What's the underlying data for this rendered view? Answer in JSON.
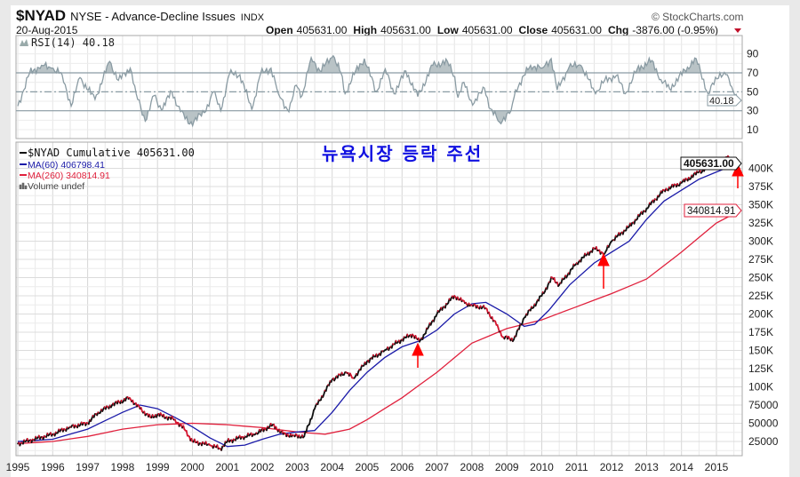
{
  "header": {
    "symbol": "$NYAD",
    "name": "NYSE - Advance-Decline Issues",
    "exchange": "INDX",
    "date": "20-Aug-2015",
    "brand": "© StockCharts.com",
    "open_label": "Open",
    "open": "405631.00",
    "high_label": "High",
    "high": "405631.00",
    "low_label": "Low",
    "low": "405631.00",
    "close_label": "Close",
    "close": "405631.00",
    "chg_label": "Chg",
    "chg": "-3876.00 (-0.95%)"
  },
  "annotation": "뉴욕시장 등락 주선",
  "colors": {
    "price": "#111111",
    "ma60": "#1a1aa8",
    "ma260": "#e0203c",
    "rsi": "#8a9ba3",
    "arrow": "#ff0000",
    "title": "#1010e0"
  },
  "chart_data": [
    {
      "type": "line",
      "title": "RSI(14) 40.18",
      "legend": "RSI(14) 40.18",
      "last_value_tag": "40.18",
      "ylim": [
        0,
        100
      ],
      "yticks": [
        "90",
        "70",
        "50",
        "30",
        "10"
      ],
      "ytick_values": [
        90,
        70,
        50,
        30,
        10
      ],
      "reference_lines": [
        70,
        50,
        30
      ],
      "x": [
        1995.0,
        1995.34,
        1995.68,
        1995.97,
        1996.27,
        1996.53,
        1996.78,
        1997.21,
        1997.63,
        1997.88,
        1998.22,
        1998.39,
        1998.65,
        1998.9,
        1999.11,
        1999.41,
        1999.66,
        1999.92,
        2000.34,
        2000.6,
        2000.81,
        2001.06,
        2001.36,
        2001.7,
        2001.95,
        2002.25,
        2002.46,
        2002.76,
        2002.97,
        2003.14,
        2003.4,
        2003.65,
        2004.03,
        2004.25,
        2004.37,
        2004.67,
        2004.92,
        2005.26,
        2005.52,
        2005.77,
        2006.11,
        2006.45,
        2006.88,
        2007.3,
        2007.51,
        2007.6,
        2007.77,
        2008.02,
        2008.36,
        2008.53,
        2008.79,
        2009.12,
        2009.25,
        2009.68,
        2010.01,
        2010.27,
        2010.44,
        2010.78,
        2011.12,
        2011.54,
        2011.8,
        2012.13,
        2012.39,
        2012.73,
        2013.15,
        2013.41,
        2013.66,
        2014.17,
        2014.42,
        2014.76,
        2015.1,
        2015.27,
        2015.44,
        2015.65
      ],
      "values": [
        35,
        70,
        78,
        75,
        68,
        35,
        65,
        42,
        82,
        62,
        75,
        48,
        19,
        46,
        31,
        50,
        29,
        16,
        28,
        50,
        30,
        69,
        68,
        31,
        69,
        75,
        48,
        29,
        57,
        46,
        86,
        72,
        88,
        70,
        48,
        72,
        85,
        50,
        74,
        48,
        72,
        45,
        78,
        82,
        66,
        44,
        60,
        36,
        54,
        32,
        18,
        30,
        52,
        78,
        75,
        85,
        52,
        76,
        78,
        48,
        62,
        67,
        48,
        74,
        83,
        63,
        53,
        76,
        85,
        48,
        70,
        68,
        55,
        40.18
      ]
    },
    {
      "type": "line",
      "xlabel": "",
      "ylabel": "",
      "xlim": [
        1995,
        2015.75
      ],
      "ylim": [
        0,
        420000
      ],
      "xticks": [
        "1995",
        "1996",
        "1997",
        "1998",
        "1999",
        "2000",
        "2001",
        "2002",
        "2003",
        "2004",
        "2005",
        "2006",
        "2007",
        "2008",
        "2009",
        "2010",
        "2011",
        "2012",
        "2013",
        "2014",
        "2015"
      ],
      "yticks": [
        "25000",
        "50000",
        "75000",
        "100K",
        "125K",
        "150K",
        "175K",
        "200K",
        "225K",
        "250K",
        "275K",
        "300K",
        "325K",
        "350K",
        "375K",
        "400K"
      ],
      "ytick_values": [
        25000,
        50000,
        75000,
        100000,
        125000,
        150000,
        175000,
        200000,
        225000,
        250000,
        275000,
        300000,
        325000,
        350000,
        375000,
        400000
      ],
      "legend_placement": "top-left",
      "legend": [
        {
          "label": "$NYAD Cumulative 405631.00"
        },
        {
          "label": "MA(60) 406798.41"
        },
        {
          "label": "MA(260) 340814.91"
        },
        {
          "label": "Volume undef"
        }
      ],
      "last_value_tags": {
        "price": "405631.00",
        "ma260": "340814.91"
      },
      "series": [
        {
          "name": "$NYAD Cumulative",
          "x": [
            1995,
            1996,
            1996.5,
            1997,
            1997.3,
            1997.7,
            1998.2,
            1998.5,
            1998.8,
            1999,
            1999.5,
            1999.8,
            2000,
            2000.5,
            2000.8,
            2001,
            2001.5,
            2001.8,
            2002.3,
            2002.6,
            2002.9,
            2003.2,
            2003.5,
            2004,
            2004.4,
            2004.6,
            2005,
            2005.5,
            2006,
            2006.3,
            2006.5,
            2007,
            2007.5,
            2007.8,
            2008,
            2008.4,
            2008.7,
            2008.9,
            2009.2,
            2009.5,
            2010,
            2010.3,
            2010.5,
            2011,
            2011.5,
            2011.8,
            2012,
            2012.5,
            2013,
            2013.5,
            2014,
            2014.5,
            2015,
            2015.3,
            2015.63
          ],
          "values": [
            22000,
            35000,
            45000,
            50000,
            65000,
            75000,
            85000,
            70000,
            58000,
            62000,
            55000,
            40000,
            25000,
            20000,
            15000,
            25000,
            32000,
            35000,
            48000,
            35000,
            33000,
            32000,
            70000,
            110000,
            120000,
            112000,
            135000,
            150000,
            165000,
            172000,
            162000,
            200000,
            225000,
            215000,
            212000,
            208000,
            185000,
            168000,
            165000,
            195000,
            225000,
            250000,
            240000,
            270000,
            290000,
            283000,
            300000,
            320000,
            345000,
            370000,
            380000,
            395000,
            405000,
            415000,
            405631
          ]
        },
        {
          "name": "MA(60)",
          "x": [
            1995,
            1996,
            1997,
            1998,
            1998.5,
            1999,
            1999.5,
            2000,
            2000.5,
            2001,
            2001.5,
            2002,
            2002.5,
            2003,
            2003.5,
            2004,
            2004.5,
            2005,
            2005.5,
            2006,
            2006.5,
            2007,
            2007.5,
            2008,
            2008.4,
            2009,
            2009.5,
            2009.8,
            2010.2,
            2010.8,
            2011.5,
            2012,
            2012.5,
            2013,
            2013.5,
            2014,
            2014.5,
            2015,
            2015.63
          ],
          "values": [
            25000,
            28000,
            42000,
            65000,
            75000,
            70000,
            58000,
            45000,
            30000,
            18000,
            20000,
            28000,
            35000,
            38000,
            40000,
            65000,
            95000,
            120000,
            140000,
            155000,
            163000,
            178000,
            200000,
            214000,
            216000,
            200000,
            183000,
            186000,
            205000,
            240000,
            270000,
            285000,
            300000,
            330000,
            355000,
            370000,
            385000,
            395000,
            406798.41
          ]
        },
        {
          "name": "MA(260)",
          "x": [
            1995,
            1996,
            1997,
            1998,
            1999,
            2000,
            2001,
            2002,
            2003,
            2003.8,
            2004.5,
            2005,
            2006,
            2007,
            2008,
            2009,
            2010,
            2011,
            2012,
            2013,
            2014,
            2015,
            2015.63
          ],
          "values": [
            22000,
            25000,
            32000,
            42000,
            48000,
            50000,
            48000,
            44000,
            38000,
            35000,
            42000,
            55000,
            85000,
            120000,
            160000,
            180000,
            192000,
            210000,
            228000,
            248000,
            285000,
            325000,
            340814.91
          ]
        }
      ]
    }
  ]
}
